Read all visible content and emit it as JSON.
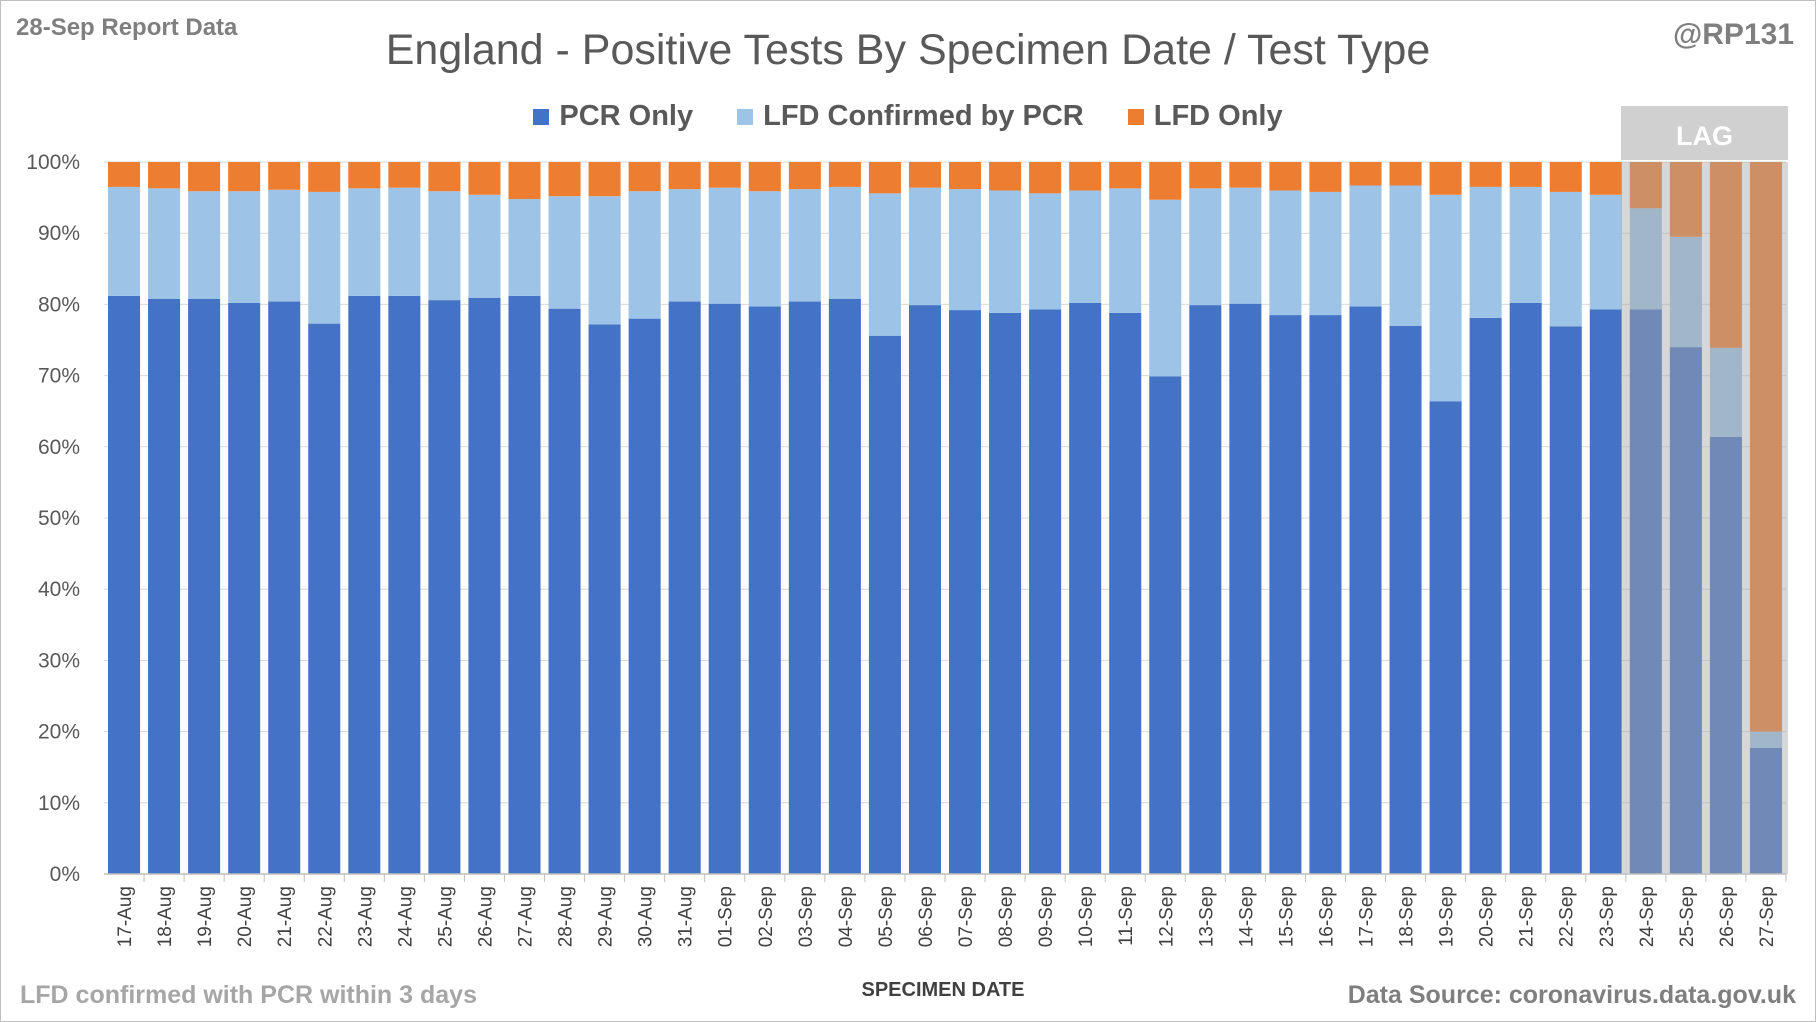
{
  "header": {
    "report_label": "28-Sep Report Data",
    "handle": "@RP131"
  },
  "footer": {
    "note": "LFD confirmed with PCR within 3 days",
    "source": "Data Source: coronavirus.data.gov.uk"
  },
  "chart_data": {
    "type": "bar",
    "stacked": true,
    "title": "England - Positive Tests By Specimen Date / Test Type",
    "xlabel": "SPECIMEN DATE",
    "ylabel": "",
    "ylim": [
      0,
      100
    ],
    "y_ticks": [
      "0%",
      "10%",
      "20%",
      "30%",
      "40%",
      "50%",
      "60%",
      "70%",
      "80%",
      "90%",
      "100%"
    ],
    "legend_position": "top-center",
    "annotation": "LAG",
    "lag_categories": [
      "24-Sep",
      "25-Sep",
      "26-Sep",
      "27-Sep"
    ],
    "categories": [
      "17-Aug",
      "18-Aug",
      "19-Aug",
      "20-Aug",
      "21-Aug",
      "22-Aug",
      "23-Aug",
      "24-Aug",
      "25-Aug",
      "26-Aug",
      "27-Aug",
      "28-Aug",
      "29-Aug",
      "30-Aug",
      "31-Aug",
      "01-Sep",
      "02-Sep",
      "03-Sep",
      "04-Sep",
      "05-Sep",
      "06-Sep",
      "07-Sep",
      "08-Sep",
      "09-Sep",
      "10-Sep",
      "11-Sep",
      "12-Sep",
      "13-Sep",
      "14-Sep",
      "15-Sep",
      "16-Sep",
      "17-Sep",
      "18-Sep",
      "19-Sep",
      "20-Sep",
      "21-Sep",
      "22-Sep",
      "23-Sep",
      "24-Sep",
      "25-Sep",
      "26-Sep",
      "27-Sep"
    ],
    "series": [
      {
        "name": "PCR Only",
        "color": "#4472c4",
        "values": [
          81.2,
          80.8,
          80.8,
          80.2,
          80.4,
          77.3,
          81.2,
          81.2,
          80.6,
          80.9,
          81.2,
          79.4,
          77.2,
          78.0,
          80.4,
          80.1,
          79.7,
          80.4,
          80.8,
          75.6,
          79.9,
          79.2,
          78.8,
          79.3,
          80.2,
          78.8,
          69.9,
          79.9,
          80.1,
          78.5,
          78.5,
          79.7,
          77.0,
          66.4,
          78.1,
          80.2,
          76.9,
          79.3,
          79.3,
          74.0,
          61.4,
          17.7
        ]
      },
      {
        "name": "LFD Confirmed by PCR",
        "color": "#9dc3e6",
        "values": [
          15.3,
          15.5,
          15.1,
          15.7,
          15.7,
          18.5,
          15.1,
          15.2,
          15.3,
          14.5,
          13.6,
          15.8,
          18.0,
          17.9,
          15.8,
          16.3,
          16.2,
          15.8,
          15.7,
          20.0,
          16.5,
          17.0,
          17.2,
          16.3,
          15.8,
          17.5,
          24.8,
          16.4,
          16.3,
          17.5,
          17.3,
          17.0,
          19.7,
          29.0,
          18.4,
          16.3,
          18.9,
          16.1,
          14.2,
          15.5,
          12.5,
          2.3
        ]
      },
      {
        "name": "LFD Only",
        "color": "#ed7d31",
        "values": [
          3.5,
          3.7,
          4.1,
          4.1,
          3.9,
          4.2,
          3.7,
          3.6,
          4.1,
          4.6,
          5.2,
          4.8,
          4.8,
          4.1,
          3.8,
          3.6,
          4.1,
          3.8,
          3.5,
          4.4,
          3.6,
          3.8,
          4.0,
          4.4,
          4.0,
          3.7,
          5.3,
          3.7,
          3.6,
          4.0,
          4.2,
          3.3,
          3.3,
          4.6,
          3.5,
          3.5,
          4.2,
          4.6,
          6.5,
          10.5,
          26.1,
          80.0
        ]
      }
    ]
  }
}
